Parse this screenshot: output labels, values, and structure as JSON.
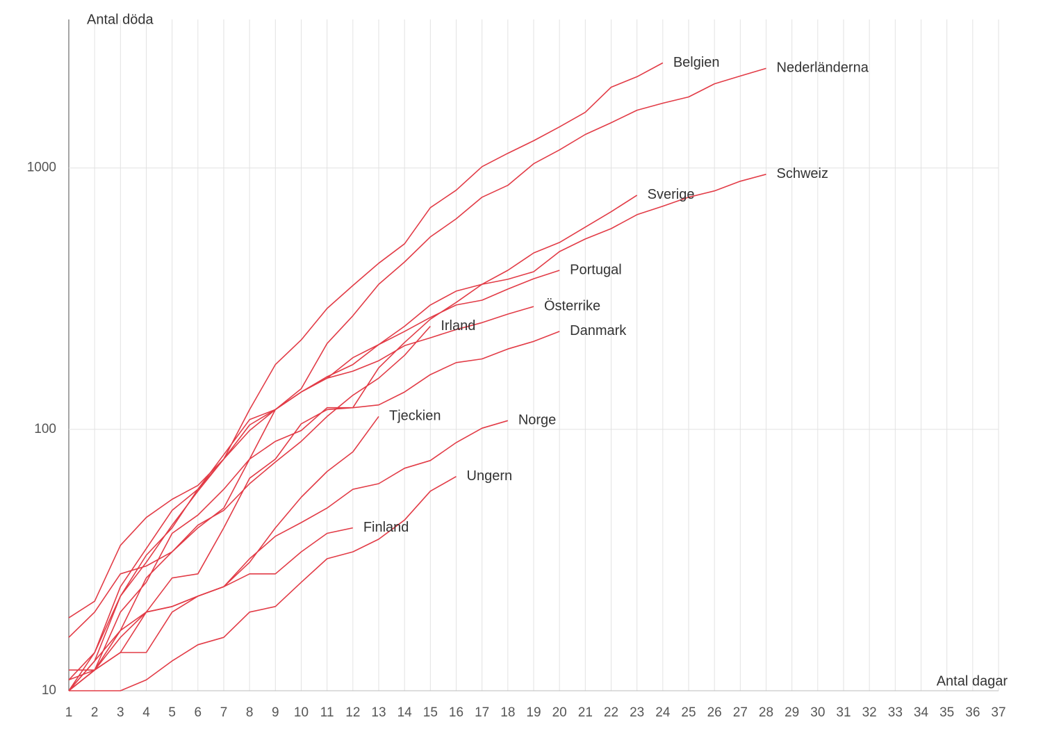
{
  "chart_data": {
    "type": "line",
    "y_label": "Antal döda",
    "x_label": "Antal dagar",
    "log_scale_y": true,
    "grid": true,
    "color": "#e23b46",
    "xlim": [
      1,
      37
    ],
    "ylim": [
      10,
      3700
    ],
    "xticks": [
      1,
      2,
      3,
      4,
      5,
      6,
      7,
      8,
      9,
      10,
      11,
      12,
      13,
      14,
      15,
      16,
      17,
      18,
      19,
      20,
      21,
      22,
      23,
      24,
      25,
      26,
      27,
      28,
      29,
      30,
      31,
      32,
      33,
      34,
      35,
      36,
      37
    ],
    "yticks": [
      10,
      100,
      1000
    ],
    "x": [
      1,
      2,
      3,
      4,
      5,
      6,
      7,
      8,
      9,
      10,
      11,
      12,
      13,
      14,
      15,
      16,
      17,
      18,
      19,
      20,
      21,
      22,
      23,
      24,
      25,
      26,
      27,
      28
    ],
    "series": [
      {
        "name": "Belgien",
        "values": [
          19,
          22,
          36,
          46,
          54,
          61,
          77,
          119,
          177,
          220,
          290,
          355,
          432,
          513,
          705,
          822,
          1012,
          1138,
          1271,
          1436,
          1633,
          2037,
          2234,
          2523,
          null,
          null,
          null,
          null
        ]
      },
      {
        "name": "Nederländerna",
        "values": [
          16,
          20,
          28,
          30,
          34,
          42,
          50,
          77,
          119,
          143,
          213,
          272,
          359,
          437,
          545,
          639,
          773,
          858,
          1038,
          1173,
          1343,
          1490,
          1663,
          1770,
          1870,
          2099,
          2248,
          2404
        ]
      },
      {
        "name": "Schweiz",
        "values": [
          11,
          14,
          23,
          31,
          43,
          58,
          77,
          99,
          119,
          139,
          159,
          177,
          211,
          248,
          299,
          338,
          359,
          375,
          401,
          479,
          535,
          586,
          663,
          714,
          773,
          817,
          890,
          946
        ]
      },
      {
        "name": "Sverige",
        "values": [
          10,
          12,
          16,
          20,
          27,
          28,
          42,
          65,
          77,
          105,
          119,
          121,
          172,
          215,
          264,
          306,
          359,
          406,
          473,
          519,
          594,
          680,
          787,
          null,
          null,
          null,
          null,
          null
        ]
      },
      {
        "name": "Portugal",
        "values": [
          10,
          13,
          23,
          33,
          42,
          59,
          80,
          109,
          119,
          139,
          157,
          188,
          211,
          237,
          268,
          299,
          312,
          344,
          377,
          406,
          null,
          null,
          null,
          null,
          null,
          null,
          null,
          null
        ]
      },
      {
        "name": "Österrike",
        "values": [
          10,
          14,
          25,
          35,
          49,
          59,
          77,
          104,
          119,
          139,
          157,
          167,
          183,
          209,
          224,
          241,
          256,
          276,
          295,
          null,
          null,
          null,
          null,
          null,
          null,
          null,
          null,
          null
        ]
      },
      {
        "name": "Danmark",
        "values": [
          10,
          12,
          20,
          26,
          40,
          47,
          59,
          77,
          90,
          99,
          121,
          121,
          124,
          139,
          162,
          180,
          186,
          203,
          217,
          237,
          null,
          null,
          null,
          null,
          null,
          null,
          null,
          null
        ]
      },
      {
        "name": "Irland",
        "values": [
          10,
          12,
          17,
          27,
          34,
          43,
          49,
          62,
          75,
          90,
          112,
          135,
          157,
          192,
          248,
          null,
          null,
          null,
          null,
          null,
          null,
          null,
          null,
          null,
          null,
          null,
          null,
          null
        ]
      },
      {
        "name": "Tjeckien",
        "values": [
          11,
          12,
          14,
          14,
          20,
          23,
          25,
          31,
          42,
          55,
          69,
          82,
          112,
          null,
          null,
          null,
          null,
          null,
          null,
          null,
          null,
          null,
          null,
          null,
          null,
          null,
          null,
          null
        ]
      },
      {
        "name": "Norge",
        "values": [
          10,
          13,
          17,
          20,
          21,
          23,
          25,
          32,
          39,
          44,
          50,
          59,
          62,
          71,
          76,
          89,
          101,
          108,
          null,
          null,
          null,
          null,
          null,
          null,
          null,
          null,
          null,
          null
        ]
      },
      {
        "name": "Ungern",
        "values": [
          10,
          10,
          10,
          11,
          13,
          15,
          16,
          20,
          21,
          26,
          32,
          34,
          38,
          45,
          58,
          66,
          null,
          null,
          null,
          null,
          null,
          null,
          null,
          null,
          null,
          null,
          null,
          null
        ]
      },
      {
        "name": "Finland",
        "values": [
          12,
          12,
          14,
          20,
          21,
          23,
          25,
          28,
          28,
          34,
          40,
          42,
          null,
          null,
          null,
          null,
          null,
          null,
          null,
          null,
          null,
          null,
          null,
          null,
          null,
          null,
          null,
          null
        ]
      }
    ]
  }
}
